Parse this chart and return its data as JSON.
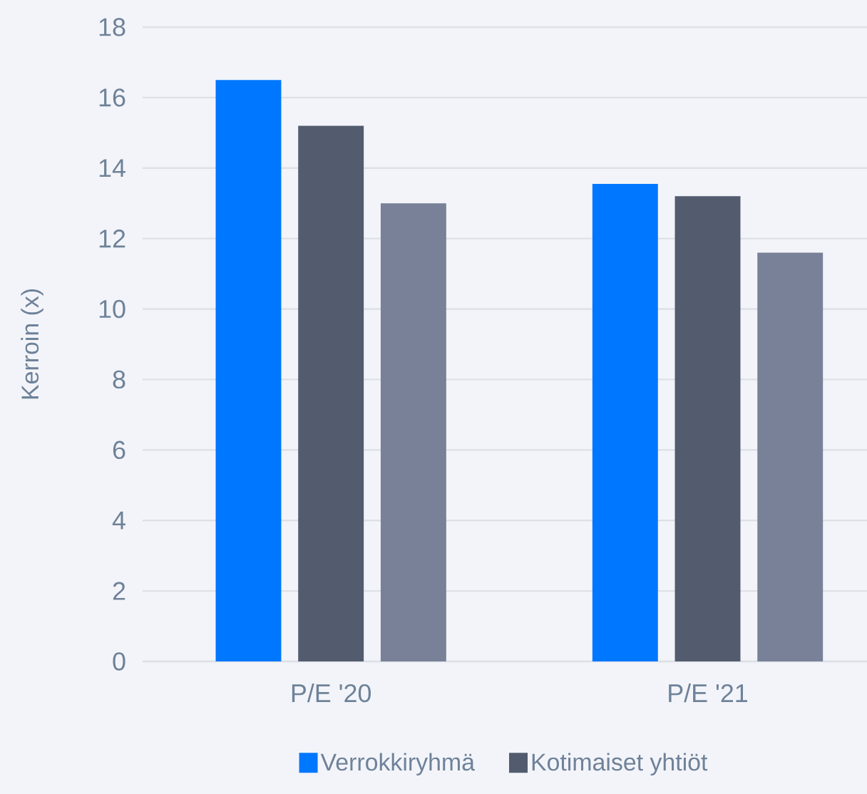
{
  "chart_data": {
    "type": "bar",
    "ylabel": "Kerroin (x)",
    "categories": [
      "P/E '20",
      "P/E '21"
    ],
    "series": [
      {
        "name": "Verrokkiryhmä",
        "color": "#0077ff",
        "values": [
          16.5,
          13.55
        ]
      },
      {
        "name": "Kotimaiset yhtiöt",
        "color": "#525c6e",
        "values": [
          15.2,
          13.2
        ]
      },
      {
        "color": "#788198",
        "values": [
          13.0,
          11.6
        ]
      }
    ],
    "ylim": [
      0,
      18
    ],
    "yticks": [
      0,
      2,
      4,
      6,
      8,
      10,
      12,
      14,
      16,
      18
    ],
    "grid": "y",
    "legend": "bottom"
  }
}
